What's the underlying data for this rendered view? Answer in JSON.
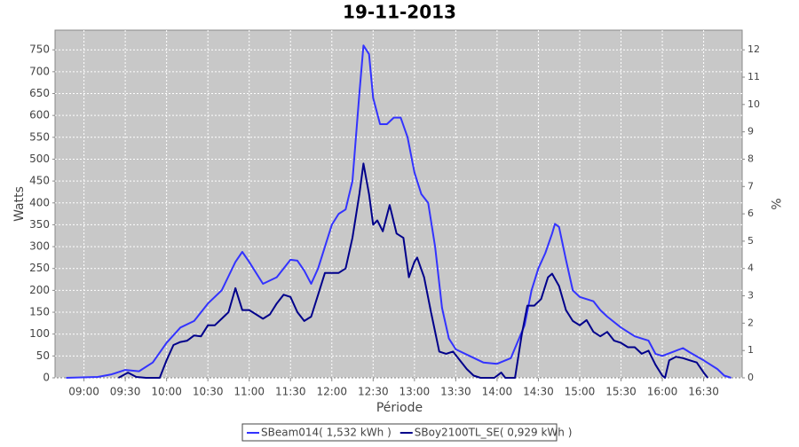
{
  "chart_data": {
    "type": "line",
    "title": "19-11-2013",
    "x_label": "Période",
    "y_label": "Watts",
    "y2_label": "%",
    "xlim": [
      "08:39",
      "16:58"
    ],
    "xticks": [
      "09:00",
      "09:30",
      "10:00",
      "10:30",
      "11:00",
      "11:30",
      "12:00",
      "12:30",
      "13:00",
      "13:30",
      "14:00",
      "14:30",
      "15:00",
      "15:30",
      "16:00",
      "16:30"
    ],
    "ylim": [
      0,
      795
    ],
    "yticks": [
      0,
      50,
      100,
      150,
      200,
      250,
      300,
      350,
      400,
      450,
      500,
      550,
      600,
      650,
      700,
      750
    ],
    "y2lim": [
      0,
      12.72
    ],
    "y2ticks": [
      0,
      1,
      2,
      3,
      4,
      5,
      6,
      7,
      8,
      9,
      10,
      11,
      12
    ],
    "grid": true,
    "legend": "bottom",
    "series": [
      {
        "name": "SBeam014( 1,532 kWh )",
        "color": "#3333ff",
        "x": [
          "08:47",
          "09:10",
          "09:20",
          "09:30",
          "09:40",
          "09:50",
          "10:00",
          "10:10",
          "10:20",
          "10:30",
          "10:40",
          "10:50",
          "10:55",
          "11:00",
          "11:10",
          "11:20",
          "11:30",
          "11:35",
          "11:40",
          "11:45",
          "11:50",
          "12:00",
          "12:05",
          "12:10",
          "12:15",
          "12:20",
          "12:23",
          "12:27",
          "12:30",
          "12:35",
          "12:40",
          "12:45",
          "12:50",
          "12:55",
          "13:00",
          "13:05",
          "13:10",
          "13:15",
          "13:20",
          "13:25",
          "13:30",
          "13:40",
          "13:50",
          "14:00",
          "14:10",
          "14:20",
          "14:25",
          "14:30",
          "14:35",
          "14:40",
          "14:42",
          "14:45",
          "14:50",
          "14:55",
          "15:00",
          "15:10",
          "15:15",
          "15:20",
          "15:30",
          "15:40",
          "15:50",
          "15:55",
          "16:00",
          "16:10",
          "16:15",
          "16:20",
          "16:30",
          "16:40",
          "16:45",
          "16:50"
        ],
        "values": [
          0,
          2,
          8,
          18,
          15,
          35,
          80,
          115,
          130,
          170,
          200,
          265,
          288,
          265,
          215,
          230,
          270,
          268,
          245,
          215,
          250,
          350,
          375,
          385,
          450,
          650,
          760,
          740,
          640,
          580,
          580,
          595,
          595,
          550,
          470,
          420,
          400,
          300,
          160,
          90,
          65,
          50,
          35,
          32,
          45,
          120,
          200,
          250,
          285,
          330,
          352,
          345,
          270,
          200,
          185,
          175,
          155,
          140,
          115,
          95,
          85,
          55,
          50,
          62,
          68,
          58,
          40,
          20,
          5,
          0
        ]
      },
      {
        "name": "SBoy2100TL_SE( 0,929 kWh )",
        "color": "#00008b",
        "x": [
          "09:25",
          "09:32",
          "09:38",
          "09:45",
          "09:55",
          "10:00",
          "10:05",
          "10:10",
          "10:15",
          "10:20",
          "10:25",
          "10:30",
          "10:35",
          "10:40",
          "10:45",
          "10:50",
          "10:55",
          "11:00",
          "11:05",
          "11:10",
          "11:15",
          "11:20",
          "11:25",
          "11:30",
          "11:35",
          "11:40",
          "11:45",
          "11:50",
          "11:55",
          "12:00",
          "12:05",
          "12:10",
          "12:15",
          "12:20",
          "12:23",
          "12:27",
          "12:30",
          "12:33",
          "12:37",
          "12:42",
          "12:47",
          "12:52",
          "12:56",
          "13:00",
          "13:02",
          "13:07",
          "13:12",
          "13:18",
          "13:23",
          "13:28",
          "13:33",
          "13:38",
          "13:43",
          "13:48",
          "13:58",
          "14:03",
          "14:06",
          "14:13",
          "14:18",
          "14:22",
          "14:27",
          "14:32",
          "14:37",
          "14:40",
          "14:45",
          "14:50",
          "14:55",
          "15:00",
          "15:05",
          "15:10",
          "15:15",
          "15:20",
          "15:25",
          "15:30",
          "15:35",
          "15:40",
          "15:45",
          "15:50",
          "15:55",
          "16:00",
          "16:02",
          "16:05",
          "16:10",
          "16:15",
          "16:20",
          "16:25",
          "16:30",
          "16:33"
        ],
        "values": [
          0,
          12,
          2,
          0,
          0,
          40,
          75,
          82,
          85,
          97,
          95,
          120,
          120,
          135,
          150,
          205,
          155,
          155,
          145,
          135,
          145,
          170,
          190,
          185,
          150,
          130,
          140,
          190,
          240,
          240,
          240,
          250,
          320,
          420,
          490,
          420,
          350,
          360,
          335,
          395,
          330,
          320,
          230,
          265,
          275,
          230,
          150,
          60,
          55,
          60,
          40,
          20,
          5,
          0,
          0,
          12,
          0,
          0,
          100,
          165,
          165,
          180,
          230,
          238,
          210,
          155,
          130,
          120,
          132,
          105,
          95,
          105,
          85,
          80,
          70,
          70,
          55,
          62,
          30,
          5,
          0,
          40,
          48,
          45,
          40,
          35,
          12,
          0
        ]
      }
    ]
  }
}
